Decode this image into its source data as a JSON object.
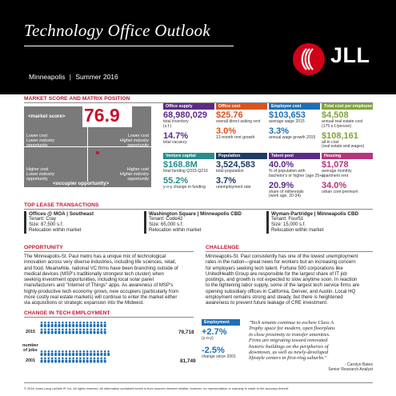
{
  "header": {
    "title": "Technology Office Outlook",
    "market": "Minneapolis",
    "divider": "|",
    "period": "Summer 2016",
    "logo_text": "JLL",
    "logo_icon": "jll-flame-icon"
  },
  "colors": {
    "red": "#c8102e",
    "orange": "#d9531e",
    "purple": "#5b2a86",
    "blue": "#1f6fb5",
    "teal": "#2a8c8c",
    "green": "#7ea43a",
    "navy": "#1f3b63",
    "pink": "#b5357c",
    "dark": "#2d2d2d",
    "gray": "#7a7a7a"
  },
  "section_titles": {
    "market": "MARKET SCORE AND MATRIX POSITION",
    "leases": "TOP LEASE TRANSACTIONS",
    "opportunity": "OPPORTUNITY",
    "challenge": "CHALLENGE",
    "change": "CHANGE IN TECH EMPLOYMENT"
  },
  "matrix": {
    "market_score_label": "<market score>",
    "market_score": "76.9",
    "occupier_label": "<occupier opportunity>",
    "quadrants": [
      {
        "l1": "Lower cost",
        "l2": "Lower industry",
        "l3": "opportunity"
      },
      {
        "l1": "Lower cost",
        "l2": "Higher industry",
        "l3": "opportunity"
      },
      {
        "l1": "Higher cost",
        "l2": "Lower industry",
        "l3": "opportunity"
      },
      {
        "l1": "Higher cost",
        "l2": "Higher industry",
        "l3": "opportunity"
      }
    ]
  },
  "stats": [
    {
      "header": "Office supply",
      "v1": "68,980,029",
      "l1a": "total inventory",
      "l1b": "(s.f.)",
      "v2": "14.7%",
      "l2a": "total vacancy",
      "l2b": ""
    },
    {
      "header": "Office cost",
      "v1": "$25.76",
      "l1a": "overall direct asking rent",
      "l1b": "",
      "v2": "3.0%",
      "l2a": "12-month rent growth",
      "l2b": ""
    },
    {
      "header": "Employee cost",
      "v1": "$103,653",
      "l1a": "average wage 2015",
      "l1b": "",
      "v2": "3.3%",
      "l2a": "annual wage growth 2015",
      "l2b": ""
    },
    {
      "header": "Total cost per employee",
      "v1": "$4,508",
      "l1a": "annual real estate cost",
      "l1b": "(175 s.f./person)",
      "v2": "$108,161",
      "l2a": "all-in cost",
      "l2b": "(real estate and wages)"
    },
    {
      "header": "Venture capital",
      "v1": "$168.8M",
      "l1a": "total funding Q315-Q216",
      "l1b": "",
      "v2": "55.2%",
      "l2a": "y-o-y change in funding",
      "l2b": ""
    },
    {
      "header": "Population",
      "v1": "3,524,583",
      "l1a": "total population",
      "l1b": "",
      "v2": "3.7%",
      "l2a": "unemployment rate",
      "l2b": ""
    },
    {
      "header": "Talent pool",
      "v1": "40.0%",
      "l1a": "% of population with",
      "l1b": "bachelor's or higher (age 25+)",
      "v2": "20.9%",
      "l2a": "share of millennials",
      "l2b": "(work age, 20-34)"
    },
    {
      "header": "Housing",
      "v1": "$1,078",
      "l1a": "average monthly",
      "l1b": "apartment rent",
      "v2": "34.0%",
      "l2a": "urban core premium",
      "l2b": ""
    }
  ],
  "leases": [
    {
      "title": "Offices @ MOA | Southeast",
      "tenant": "Tenant: Cray",
      "size": "Size: 87,500 s.f.",
      "note": "Relocation within market"
    },
    {
      "title": "Washington Square | Minneapolis CBD",
      "tenant": "Tenant: Code42",
      "size": "Size: 65,000 s.f.",
      "note": "Relocation within market"
    },
    {
      "title": "Wyman-Partridge | Minneapolis CBD",
      "tenant": "Tenant: Four51",
      "size": "Size: 15,000 s.f.",
      "note": "Relocation within market"
    }
  ],
  "opportunity_lines": [
    "The Minneapolis-St. Paul metro has a unique mix of technological",
    "innovation across very diverse industries, including life sciences, retail,",
    "and food. Meanwhile, national VC firms have been branching outside of",
    "medical devices (MSP's traditionally strongest tech cluster) when",
    "seeking investment opportunities, including local solar panel",
    "manufacturers and \"Internet of Things\" apps. As awareness of MSP's",
    "highly-productive tech economy grows, new occupiers (particularly from",
    "more costly real estate markets) will continue to enter the market either",
    "via acquisitions or strategic expansion into the Midwest."
  ],
  "challenge_lines": [
    "Minneapolis-St. Paul consistently has one of the lowest unemployment",
    "rates in the nation—great news for workers but an increasing concern",
    "for employers seeking tech talent. Fortune 500 corporations like",
    "UnitedHealth Group are responsible for the largest share of IT job",
    "postings, and growth is not expected to slow anytime soon. In reaction",
    "to the tightening labor supply, some of the largest tech service firms are",
    "opening subsidiary offices in California, Denver, and Austin. Local HQ",
    "employment remains strong and steady, but there is heightened",
    "awareness to prevent future leakage of CRE investment."
  ],
  "employment": {
    "year_2015": "2015",
    "year_2001": "2001",
    "jobs_label_1": "number",
    "jobs_label_2": "of jobs",
    "jobs_2015": "79,718",
    "jobs_2001": "81,749",
    "header": "Employment",
    "yoy": "+2.7%",
    "yoy_label": "(y-o-y)",
    "since": "-2.5%",
    "since_label": "change since 2001",
    "icons_2015": 38,
    "icons_2001": 39
  },
  "quote": {
    "lines": [
      "\"Tech tenants continue to eschew Class A",
      "Trophy space for modern, open floorplans",
      "in close proximity to transfer amenities.",
      "Firms are migrating toward renovated",
      "historic buildings on the peripheries of",
      "downtown, as well as newly-developed",
      "lifestyle centers in first-ring suburbs.\""
    ],
    "author": "- Carolyn Bates",
    "role": "Senior Research Analyst"
  },
  "footer": "© 2016 Jones Lang LaSalle IP, Inc. All rights reserved. All information contained herein is from sources deemed reliable; however, no representation or warranty is made to the accuracy thereof."
}
